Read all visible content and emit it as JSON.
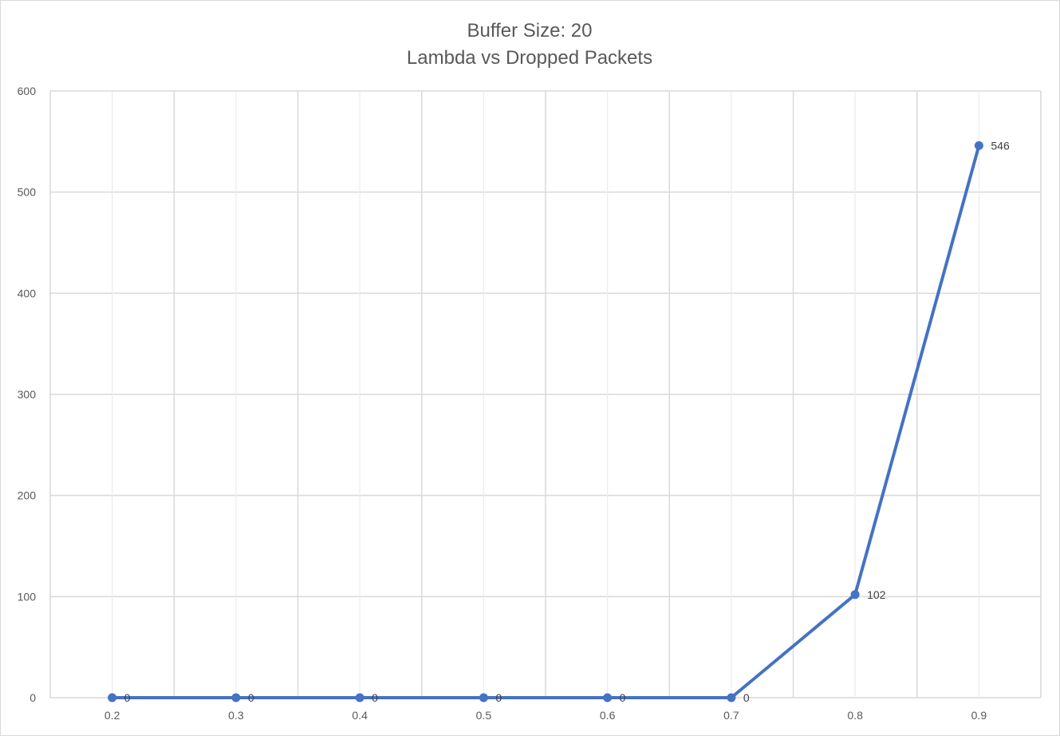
{
  "chart_data": {
    "type": "line",
    "title": "Buffer Size: 20",
    "subtitle": "Lambda vs Dropped Packets",
    "xlabel": "",
    "ylabel": "",
    "x": [
      "0.2",
      "0.3",
      "0.4",
      "0.5",
      "0.6",
      "0.7",
      "0.8",
      "0.9"
    ],
    "series": [
      {
        "values": [
          0,
          0,
          0,
          0,
          0,
          0,
          102,
          546
        ],
        "data_labels": [
          "0",
          "0",
          "0",
          "0",
          "0",
          "0",
          "102",
          "546"
        ],
        "color": "#4472c4"
      }
    ],
    "yticks": [
      "0",
      "100",
      "200",
      "300",
      "400",
      "500",
      "600"
    ],
    "ylim": [
      0,
      600
    ],
    "grid": true,
    "legend": "none"
  }
}
